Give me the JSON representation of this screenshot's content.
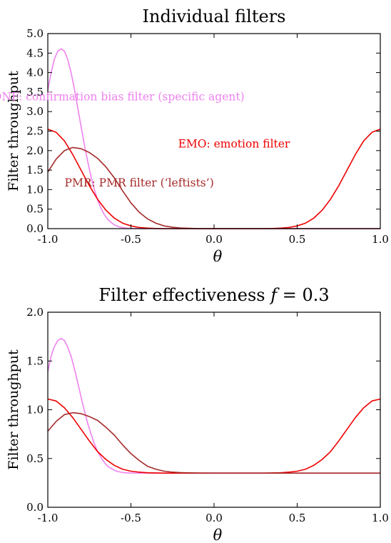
{
  "chart_data": [
    {
      "type": "line",
      "title": "Individual filters",
      "xlabel": "θ",
      "ylabel": "Filter throughput",
      "xlim": [
        -1.0,
        1.0
      ],
      "ylim": [
        0.0,
        5.0
      ],
      "xticks": [
        "-1.0",
        "-0.5",
        "0.0",
        "0.5",
        "1.0"
      ],
      "yticks": [
        "0.0",
        "0.5",
        "1.0",
        "1.5",
        "2.0",
        "2.5",
        "3.0",
        "3.5",
        "4.0",
        "4.5",
        "5.0"
      ],
      "grid": false,
      "series": [
        {
          "name": "CONF: confirmation bias filter (specific agent)",
          "color": "#ee82ee",
          "x": [
            -1.0,
            -0.98,
            -0.96,
            -0.94,
            -0.92,
            -0.9,
            -0.88,
            -0.86,
            -0.84,
            -0.82,
            -0.8,
            -0.78,
            -0.76,
            -0.74,
            -0.72,
            -0.7,
            -0.68,
            -0.66,
            -0.64,
            -0.62,
            -0.6,
            -0.58,
            -0.56,
            -0.54,
            -0.52,
            -0.5,
            -0.4,
            -0.3,
            0.0,
            0.5,
            1.0
          ],
          "values": [
            3.55,
            4.0,
            4.35,
            4.55,
            4.61,
            4.55,
            4.33,
            4.0,
            3.58,
            3.1,
            2.62,
            2.15,
            1.72,
            1.33,
            1.0,
            0.73,
            0.52,
            0.36,
            0.24,
            0.16,
            0.1,
            0.06,
            0.035,
            0.02,
            0.01,
            0.005,
            0.0,
            0.0,
            0.0,
            0.0,
            0.0
          ]
        },
        {
          "name": "EMO: emotion filter",
          "color": "#ee0000",
          "x": [
            -1.0,
            -0.95,
            -0.9,
            -0.85,
            -0.8,
            -0.75,
            -0.7,
            -0.65,
            -0.6,
            -0.55,
            -0.5,
            -0.45,
            -0.4,
            -0.35,
            -0.3,
            0.0,
            0.3,
            0.35,
            0.4,
            0.45,
            0.5,
            0.55,
            0.6,
            0.65,
            0.7,
            0.75,
            0.8,
            0.85,
            0.9,
            0.95,
            1.0
          ],
          "values": [
            2.55,
            2.47,
            2.25,
            1.9,
            1.5,
            1.1,
            0.75,
            0.47,
            0.27,
            0.14,
            0.07,
            0.03,
            0.012,
            0.004,
            0.0,
            0.0,
            0.0,
            0.004,
            0.012,
            0.03,
            0.07,
            0.14,
            0.27,
            0.47,
            0.75,
            1.1,
            1.5,
            1.9,
            2.25,
            2.47,
            2.55
          ]
        },
        {
          "name": "PMR: PMR filter (‘leftists’)",
          "color": "#a52a2a",
          "x": [
            -1.0,
            -0.95,
            -0.9,
            -0.85,
            -0.8,
            -0.75,
            -0.7,
            -0.65,
            -0.6,
            -0.55,
            -0.5,
            -0.45,
            -0.4,
            -0.35,
            -0.3,
            -0.25,
            -0.2,
            -0.1,
            0.0,
            0.5,
            1.0
          ],
          "values": [
            1.45,
            1.78,
            2.0,
            2.08,
            2.05,
            1.95,
            1.8,
            1.58,
            1.3,
            0.97,
            0.66,
            0.42,
            0.25,
            0.14,
            0.07,
            0.035,
            0.015,
            0.002,
            0.0,
            0.0,
            0.0
          ]
        }
      ],
      "annotations": [
        {
          "text": "CONF: confirmation bias filter (specific agent)",
          "x": -0.6,
          "y": 3.38,
          "color": "#ee82ee"
        },
        {
          "text": "EMO: emotion filter",
          "x": 0.12,
          "y": 2.17,
          "color": "#ee0000"
        },
        {
          "text": "PMR: PMR filter (‘leftists’)",
          "x": -0.45,
          "y": 1.17,
          "color": "#a52a2a"
        }
      ]
    },
    {
      "type": "line",
      "title": "Filter effectiveness f = 0.3",
      "xlabel": "θ",
      "ylabel": "Filter throughput",
      "xlim": [
        -1.0,
        1.0
      ],
      "ylim": [
        0.0,
        2.0
      ],
      "xticks": [
        "-1.0",
        "-0.5",
        "0.0",
        "0.5",
        "1.0"
      ],
      "yticks": [
        "0.0",
        "0.5",
        "1.0",
        "1.5",
        "2.0"
      ],
      "grid": false,
      "series": [
        {
          "name": "CONF",
          "color": "#ee82ee",
          "x": [
            -1.0,
            -0.98,
            -0.96,
            -0.94,
            -0.92,
            -0.9,
            -0.88,
            -0.86,
            -0.84,
            -0.82,
            -0.8,
            -0.78,
            -0.76,
            -0.74,
            -0.72,
            -0.7,
            -0.68,
            -0.66,
            -0.64,
            -0.62,
            -0.6,
            -0.58,
            -0.56,
            -0.54,
            -0.5,
            -0.4,
            0.0,
            0.5,
            1.0
          ],
          "values": [
            1.39,
            1.55,
            1.65,
            1.71,
            1.73,
            1.71,
            1.64,
            1.55,
            1.42,
            1.28,
            1.13,
            0.99,
            0.86,
            0.75,
            0.65,
            0.57,
            0.51,
            0.46,
            0.42,
            0.4,
            0.38,
            0.367,
            0.36,
            0.355,
            0.351,
            0.35,
            0.35,
            0.35,
            0.35
          ]
        },
        {
          "name": "EMO",
          "color": "#ee0000",
          "x": [
            -1.0,
            -0.95,
            -0.9,
            -0.85,
            -0.8,
            -0.75,
            -0.7,
            -0.65,
            -0.6,
            -0.55,
            -0.5,
            -0.45,
            -0.4,
            -0.3,
            0.0,
            0.3,
            0.4,
            0.45,
            0.5,
            0.55,
            0.6,
            0.65,
            0.7,
            0.75,
            0.8,
            0.85,
            0.9,
            0.95,
            1.0
          ],
          "values": [
            1.11,
            1.09,
            1.02,
            0.92,
            0.8,
            0.68,
            0.57,
            0.49,
            0.43,
            0.39,
            0.37,
            0.36,
            0.354,
            0.35,
            0.35,
            0.35,
            0.354,
            0.36,
            0.37,
            0.39,
            0.43,
            0.49,
            0.57,
            0.68,
            0.8,
            0.92,
            1.02,
            1.09,
            1.11
          ]
        },
        {
          "name": "PMR",
          "color": "#a52a2a",
          "x": [
            -1.0,
            -0.95,
            -0.9,
            -0.85,
            -0.8,
            -0.75,
            -0.7,
            -0.65,
            -0.6,
            -0.55,
            -0.5,
            -0.45,
            -0.4,
            -0.35,
            -0.3,
            -0.25,
            -0.2,
            -0.1,
            0.0,
            0.5,
            1.0
          ],
          "values": [
            0.78,
            0.88,
            0.95,
            0.97,
            0.96,
            0.93,
            0.89,
            0.82,
            0.74,
            0.64,
            0.55,
            0.48,
            0.42,
            0.39,
            0.37,
            0.36,
            0.355,
            0.351,
            0.35,
            0.35,
            0.35
          ]
        }
      ],
      "annotations": []
    }
  ],
  "titles": {
    "top": "Individual filters",
    "bottom_prefix": "Filter effectiveness ",
    "bottom_var": "f",
    "bottom_suffix": " = 0.3"
  }
}
